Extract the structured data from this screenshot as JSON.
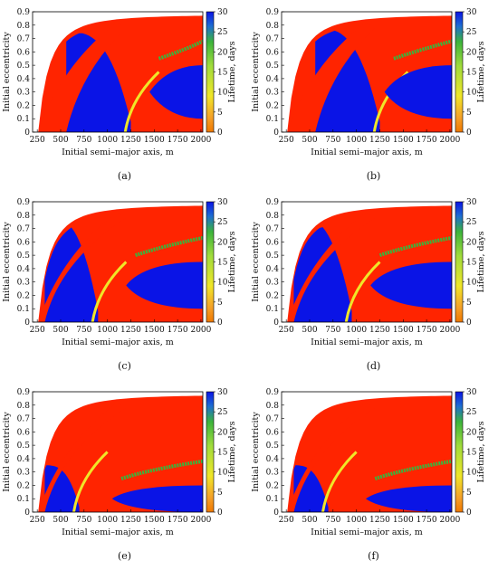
{
  "chart_data": [
    {
      "id": "a",
      "caption": "(a)",
      "type": "heatmap",
      "xlabel": "Initial semi–major axis, m",
      "ylabel": "Initial eccentricity",
      "colorbar_label": "Lifetime, days",
      "xlim": [
        200,
        2020
      ],
      "ylim": [
        0,
        0.9
      ],
      "xticks": [
        "250",
        "500",
        "750",
        "1000",
        "1250",
        "1500",
        "1750",
        "2000"
      ],
      "yticks": [
        "0",
        "0.1",
        "0.2",
        "0.3",
        "0.4",
        "0.5",
        "0.6",
        "0.7",
        "0.8",
        "0.9"
      ],
      "cticks": [
        "0",
        "5",
        "10",
        "15",
        "20",
        "25",
        "30"
      ],
      "clim": [
        0,
        30
      ],
      "regions": {
        "boundary_a_at_e0": 260,
        "inner_red_band_end_a": 560,
        "blue_region_x": [
          560,
          1250
        ],
        "blue_region_e_max": 0.75,
        "lower_right_blue_x": [
          1450,
          2020
        ],
        "lower_right_blue_e": [
          0.1,
          0.5
        ]
      }
    },
    {
      "id": "b",
      "caption": "(b)",
      "type": "heatmap",
      "xlabel": "Initial semi–major axis, m",
      "ylabel": "Initial eccentricity",
      "colorbar_label": "Lifetime, days",
      "xlim": [
        200,
        2020
      ],
      "ylim": [
        0,
        0.9
      ],
      "xticks": [
        "250",
        "500",
        "750",
        "1000",
        "1250",
        "1500",
        "1750",
        "2000"
      ],
      "yticks": [
        "0",
        "0.1",
        "0.2",
        "0.3",
        "0.4",
        "0.5",
        "0.6",
        "0.7",
        "0.8",
        "0.9"
      ],
      "cticks": [
        "0",
        "5",
        "10",
        "15",
        "20",
        "25",
        "30"
      ],
      "clim": [
        0,
        30
      ],
      "regions": {
        "boundary_a_at_e0": 260,
        "inner_red_band_end_a": 560,
        "blue_region_x": [
          560,
          1250
        ],
        "blue_region_e_max": 0.78,
        "lower_right_blue_x": [
          1300,
          2020
        ],
        "lower_right_blue_e": [
          0.1,
          0.5
        ]
      }
    },
    {
      "id": "c",
      "caption": "(c)",
      "type": "heatmap",
      "xlabel": "Initial semi–major axis, m",
      "ylabel": "Initial eccentricity",
      "colorbar_label": "Lifetime, days",
      "xlim": [
        200,
        2020
      ],
      "ylim": [
        0,
        0.9
      ],
      "xticks": [
        "250",
        "500",
        "750",
        "1000",
        "1250",
        "1500",
        "1750",
        "2000"
      ],
      "yticks": [
        "0",
        "0.1",
        "0.2",
        "0.3",
        "0.4",
        "0.5",
        "0.6",
        "0.7",
        "0.8",
        "0.9"
      ],
      "cticks": [
        "0",
        "5",
        "10",
        "15",
        "20",
        "25",
        "30"
      ],
      "clim": [
        0,
        30
      ],
      "regions": {
        "boundary_a_at_e0": 260,
        "inner_red_band_end_a": 330,
        "blue_region_x": [
          330,
          900
        ],
        "blue_region_e_max": 0.8,
        "lower_right_blue_x": [
          1200,
          2020
        ],
        "lower_right_blue_e": [
          0.1,
          0.45
        ]
      }
    },
    {
      "id": "d",
      "caption": "(d)",
      "type": "heatmap",
      "xlabel": "Initial semi–major axis, m",
      "ylabel": "Initial eccentricity",
      "colorbar_label": "Lifetime, days",
      "xlim": [
        200,
        2020
      ],
      "ylim": [
        0,
        0.9
      ],
      "xticks": [
        "250",
        "500",
        "750",
        "1000",
        "1250",
        "1500",
        "1750",
        "2000"
      ],
      "yticks": [
        "0",
        "0.1",
        "0.2",
        "0.3",
        "0.4",
        "0.5",
        "0.6",
        "0.7",
        "0.8",
        "0.9"
      ],
      "cticks": [
        "0",
        "5",
        "10",
        "15",
        "20",
        "25",
        "30"
      ],
      "clim": [
        0,
        30
      ],
      "regions": {
        "boundary_a_at_e0": 260,
        "inner_red_band_end_a": 330,
        "blue_region_x": [
          330,
          950
        ],
        "blue_region_e_max": 0.8,
        "lower_right_blue_x": [
          1150,
          2020
        ],
        "lower_right_blue_e": [
          0.1,
          0.45
        ]
      }
    },
    {
      "id": "e",
      "caption": "(e)",
      "type": "heatmap",
      "xlabel": "Initial semi–major axis, m",
      "ylabel": "Initial eccentricity",
      "colorbar_label": "Lifetime, days",
      "xlim": [
        200,
        2020
      ],
      "ylim": [
        0,
        0.9
      ],
      "xticks": [
        "250",
        "500",
        "750",
        "1000",
        "1250",
        "1500",
        "1750",
        "2000"
      ],
      "yticks": [
        "0",
        "0.1",
        "0.2",
        "0.3",
        "0.4",
        "0.5",
        "0.6",
        "0.7",
        "0.8",
        "0.9"
      ],
      "cticks": [
        "0",
        "5",
        "10",
        "15",
        "20",
        "25",
        "30"
      ],
      "clim": [
        0,
        30
      ],
      "regions": {
        "boundary_a_at_e0": 260,
        "inner_red_band_end_a": 330,
        "blue_region_x": [
          330,
          700
        ],
        "blue_region_e_max": 0.35,
        "lower_right_blue_x": [
          1050,
          2020
        ],
        "lower_right_blue_e": [
          0.0,
          0.2
        ]
      }
    },
    {
      "id": "f",
      "caption": "(f)",
      "type": "heatmap",
      "xlabel": "Initial semi–major axis, m",
      "ylabel": "Initial eccentricity",
      "colorbar_label": "Lifetime, days",
      "xlim": [
        200,
        2020
      ],
      "ylim": [
        0,
        0.9
      ],
      "xticks": [
        "250",
        "500",
        "750",
        "1000",
        "1250",
        "1500",
        "1750",
        "2000"
      ],
      "yticks": [
        "0",
        "0.1",
        "0.2",
        "0.3",
        "0.4",
        "0.5",
        "0.6",
        "0.7",
        "0.8",
        "0.9"
      ],
      "cticks": [
        "0",
        "5",
        "10",
        "15",
        "20",
        "25",
        "30"
      ],
      "clim": [
        0,
        30
      ],
      "regions": {
        "boundary_a_at_e0": 260,
        "inner_red_band_end_a": 330,
        "blue_region_x": [
          330,
          700
        ],
        "blue_region_e_max": 0.35,
        "lower_right_blue_x": [
          1100,
          2020
        ],
        "lower_right_blue_e": [
          0.0,
          0.2
        ]
      }
    }
  ],
  "colors": {
    "red": "#ff2400",
    "blue": "#0a14e6",
    "green": "#3cb43c",
    "yellow": "#f0e628",
    "orange": "#f07800"
  }
}
